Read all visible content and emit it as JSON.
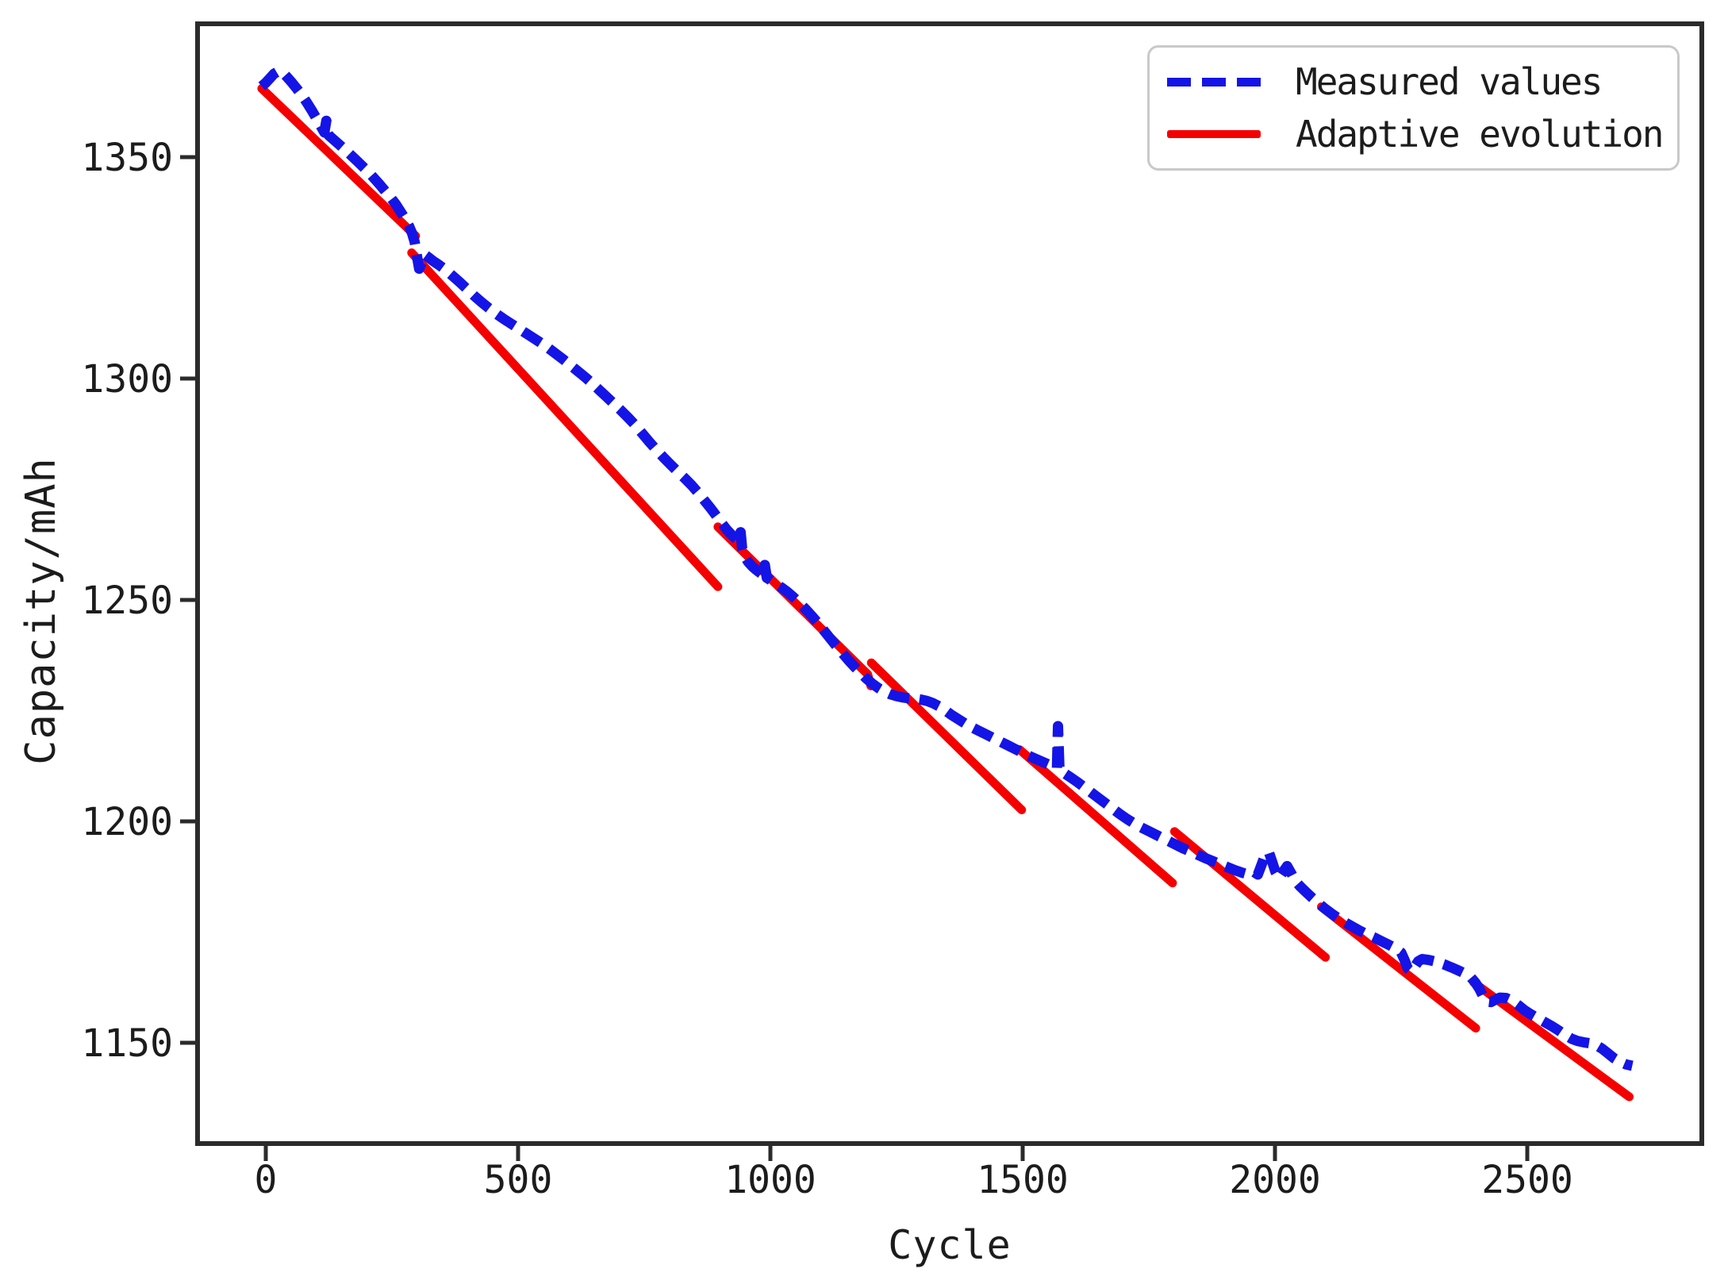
{
  "chart_data": {
    "type": "line",
    "title": "",
    "xlabel": "Cycle",
    "ylabel": "Capacity/mAh",
    "xlim": [
      -135,
      2848
    ],
    "ylim": [
      1127,
      1380
    ],
    "x_ticks": [
      0,
      500,
      1000,
      1500,
      2000,
      2500
    ],
    "y_ticks": [
      1150,
      1200,
      1250,
      1300,
      1350
    ],
    "grid": false,
    "legend_position": "upper right",
    "colors": {
      "measured": "#1414e6",
      "adaptive": "#f40000",
      "axis": "#2b2b2b",
      "text": "#1c1c1c",
      "legend_border": "#c9c9c9"
    },
    "series": [
      {
        "name": "Measured values",
        "style": "dashed",
        "color": "#1414e6",
        "points": [
          [
            -8,
            1366
          ],
          [
            0,
            1366.8
          ],
          [
            8,
            1367.8
          ],
          [
            16,
            1368.8
          ],
          [
            25,
            1369.4
          ],
          [
            34,
            1369.1
          ],
          [
            43,
            1368.0
          ],
          [
            52,
            1366.8
          ],
          [
            62,
            1365.4
          ],
          [
            72,
            1363.9
          ],
          [
            82,
            1362.2
          ],
          [
            92,
            1360.4
          ],
          [
            102,
            1358.4
          ],
          [
            110,
            1356.8
          ],
          [
            116,
            1355.6
          ],
          [
            120,
            1358.2
          ],
          [
            124,
            1355.0
          ],
          [
            132,
            1354.2
          ],
          [
            141,
            1353.3
          ],
          [
            150,
            1352.4
          ],
          [
            160,
            1351.4
          ],
          [
            171,
            1350.2
          ],
          [
            182,
            1349.0
          ],
          [
            193,
            1347.8
          ],
          [
            204,
            1346.6
          ],
          [
            215,
            1345.2
          ],
          [
            226,
            1343.8
          ],
          [
            237,
            1342.3
          ],
          [
            248,
            1340.8
          ],
          [
            258,
            1339.3
          ],
          [
            267,
            1337.7
          ],
          [
            276,
            1336.1
          ],
          [
            284,
            1334.4
          ],
          [
            290,
            1332.8
          ],
          [
            295,
            1330.9
          ],
          [
            299,
            1328.0
          ],
          [
            304,
            1324.8
          ],
          [
            310,
            1326.4
          ],
          [
            315,
            1328.0
          ],
          [
            322,
            1327.4
          ],
          [
            332,
            1326.5
          ],
          [
            344,
            1325.6
          ],
          [
            357,
            1324.5
          ],
          [
            370,
            1323.2
          ],
          [
            384,
            1321.8
          ],
          [
            398,
            1320.3
          ],
          [
            412,
            1318.8
          ],
          [
            426,
            1317.4
          ],
          [
            441,
            1316.0
          ],
          [
            456,
            1314.7
          ],
          [
            471,
            1313.5
          ],
          [
            486,
            1312.4
          ],
          [
            501,
            1311.3
          ],
          [
            516,
            1310.2
          ],
          [
            531,
            1309.1
          ],
          [
            546,
            1308.0
          ],
          [
            561,
            1306.8
          ],
          [
            576,
            1305.5
          ],
          [
            591,
            1304.2
          ],
          [
            606,
            1302.8
          ],
          [
            620,
            1301.5
          ],
          [
            634,
            1300.2
          ],
          [
            648,
            1298.8
          ],
          [
            662,
            1297.3
          ],
          [
            676,
            1295.8
          ],
          [
            690,
            1294.3
          ],
          [
            704,
            1292.8
          ],
          [
            718,
            1291.2
          ],
          [
            732,
            1289.5
          ],
          [
            746,
            1287.6
          ],
          [
            760,
            1285.7
          ],
          [
            774,
            1283.9
          ],
          [
            788,
            1282.2
          ],
          [
            802,
            1280.6
          ],
          [
            816,
            1279.0
          ],
          [
            830,
            1277.5
          ],
          [
            844,
            1275.9
          ],
          [
            857,
            1274.2
          ],
          [
            869,
            1272.5
          ],
          [
            881,
            1270.8
          ],
          [
            893,
            1269.0
          ],
          [
            904,
            1267.3
          ],
          [
            914,
            1265.8
          ],
          [
            924,
            1264.6
          ],
          [
            933,
            1263.7
          ],
          [
            939,
            1263.2
          ],
          [
            941,
            1265.3
          ],
          [
            944,
            1261.6
          ],
          [
            949,
            1259.9
          ],
          [
            956,
            1258.6
          ],
          [
            964,
            1257.6
          ],
          [
            972,
            1256.8
          ],
          [
            980,
            1256.1
          ],
          [
            986,
            1255.6
          ],
          [
            989,
            1257.9
          ],
          [
            993,
            1255.0
          ],
          [
            1000,
            1254.5
          ],
          [
            1010,
            1253.7
          ],
          [
            1022,
            1252.8
          ],
          [
            1034,
            1251.8
          ],
          [
            1046,
            1250.6
          ],
          [
            1058,
            1249.3
          ],
          [
            1070,
            1247.9
          ],
          [
            1082,
            1246.4
          ],
          [
            1094,
            1244.8
          ],
          [
            1106,
            1243.1
          ],
          [
            1118,
            1241.4
          ],
          [
            1130,
            1239.7
          ],
          [
            1142,
            1238.1
          ],
          [
            1154,
            1236.5
          ],
          [
            1166,
            1235.0
          ],
          [
            1178,
            1233.6
          ],
          [
            1190,
            1232.3
          ],
          [
            1202,
            1231.1
          ],
          [
            1214,
            1230.1
          ],
          [
            1226,
            1229.3
          ],
          [
            1238,
            1228.7
          ],
          [
            1250,
            1228.3
          ],
          [
            1262,
            1228.0
          ],
          [
            1274,
            1227.8
          ],
          [
            1286,
            1227.7
          ],
          [
            1298,
            1227.5
          ],
          [
            1310,
            1227.2
          ],
          [
            1322,
            1226.7
          ],
          [
            1334,
            1226.0
          ],
          [
            1346,
            1225.1
          ],
          [
            1358,
            1224.1
          ],
          [
            1372,
            1223.1
          ],
          [
            1386,
            1222.1
          ],
          [
            1400,
            1221.2
          ],
          [
            1414,
            1220.4
          ],
          [
            1428,
            1219.6
          ],
          [
            1442,
            1218.8
          ],
          [
            1456,
            1218.0
          ],
          [
            1470,
            1217.2
          ],
          [
            1484,
            1216.4
          ],
          [
            1498,
            1215.6
          ],
          [
            1512,
            1214.8
          ],
          [
            1526,
            1214.1
          ],
          [
            1540,
            1213.4
          ],
          [
            1552,
            1212.8
          ],
          [
            1562,
            1212.3
          ],
          [
            1568,
            1212.0
          ],
          [
            1570,
            1221.5
          ],
          [
            1573,
            1211.6
          ],
          [
            1582,
            1210.9
          ],
          [
            1594,
            1210.0
          ],
          [
            1608,
            1208.9
          ],
          [
            1622,
            1207.7
          ],
          [
            1636,
            1206.5
          ],
          [
            1650,
            1205.3
          ],
          [
            1664,
            1204.1
          ],
          [
            1678,
            1202.9
          ],
          [
            1692,
            1201.7
          ],
          [
            1706,
            1200.6
          ],
          [
            1720,
            1199.6
          ],
          [
            1734,
            1198.7
          ],
          [
            1748,
            1197.9
          ],
          [
            1762,
            1197.1
          ],
          [
            1776,
            1196.3
          ],
          [
            1790,
            1195.5
          ],
          [
            1804,
            1194.7
          ],
          [
            1818,
            1193.9
          ],
          [
            1832,
            1193.2
          ],
          [
            1846,
            1192.5
          ],
          [
            1860,
            1191.8
          ],
          [
            1875,
            1191.1
          ],
          [
            1890,
            1190.4
          ],
          [
            1905,
            1189.7
          ],
          [
            1920,
            1189.0
          ],
          [
            1935,
            1188.4
          ],
          [
            1948,
            1188.0
          ],
          [
            1958,
            1188.6
          ],
          [
            1966,
            1188.0
          ],
          [
            1974,
            1190.4
          ],
          [
            1981,
            1192.6
          ],
          [
            1988,
            1193.0
          ],
          [
            1994,
            1191.0
          ],
          [
            2001,
            1188.6
          ],
          [
            2008,
            1187.2
          ],
          [
            2016,
            1188.6
          ],
          [
            2024,
            1189.9
          ],
          [
            2032,
            1188.3
          ],
          [
            2040,
            1186.6
          ],
          [
            2050,
            1185.3
          ],
          [
            2062,
            1184.0
          ],
          [
            2074,
            1182.7
          ],
          [
            2086,
            1181.5
          ],
          [
            2098,
            1180.4
          ],
          [
            2112,
            1179.2
          ],
          [
            2126,
            1178.1
          ],
          [
            2140,
            1177.1
          ],
          [
            2154,
            1176.2
          ],
          [
            2168,
            1175.3
          ],
          [
            2182,
            1174.5
          ],
          [
            2196,
            1173.8
          ],
          [
            2210,
            1173.0
          ],
          [
            2224,
            1172.2
          ],
          [
            2238,
            1171.4
          ],
          [
            2250,
            1170.4
          ],
          [
            2257,
            1168.6
          ],
          [
            2263,
            1166.8
          ],
          [
            2270,
            1166.1
          ],
          [
            2277,
            1167.2
          ],
          [
            2284,
            1168.4
          ],
          [
            2292,
            1168.9
          ],
          [
            2305,
            1168.7
          ],
          [
            2320,
            1168.3
          ],
          [
            2335,
            1167.7
          ],
          [
            2350,
            1167.0
          ],
          [
            2364,
            1166.3
          ],
          [
            2377,
            1165.6
          ],
          [
            2388,
            1164.8
          ],
          [
            2397,
            1163.6
          ],
          [
            2405,
            1162.2
          ],
          [
            2413,
            1160.4
          ],
          [
            2420,
            1159.3
          ],
          [
            2428,
            1159.2
          ],
          [
            2436,
            1159.7
          ],
          [
            2446,
            1160.2
          ],
          [
            2458,
            1160.1
          ],
          [
            2470,
            1159.5
          ],
          [
            2482,
            1158.5
          ],
          [
            2494,
            1157.4
          ],
          [
            2506,
            1156.5
          ],
          [
            2520,
            1155.6
          ],
          [
            2534,
            1154.7
          ],
          [
            2548,
            1153.8
          ],
          [
            2562,
            1152.8
          ],
          [
            2576,
            1151.7
          ],
          [
            2588,
            1150.9
          ],
          [
            2600,
            1150.4
          ],
          [
            2612,
            1150.1
          ],
          [
            2624,
            1149.9
          ],
          [
            2636,
            1149.5
          ],
          [
            2648,
            1148.7
          ],
          [
            2660,
            1147.6
          ],
          [
            2672,
            1146.5
          ],
          [
            2684,
            1145.7
          ],
          [
            2696,
            1145.1
          ],
          [
            2708,
            1144.8
          ]
        ]
      },
      {
        "name": "Adaptive evolution",
        "style": "solid",
        "color": "#f40000",
        "segments": [
          [
            [
              -8,
              1365.5
            ],
            [
              297,
              1332.2
            ]
          ],
          [
            [
              289,
              1328.4
            ],
            [
              896,
              1253.0
            ]
          ],
          [
            [
              896,
              1266.5
            ],
            [
              1193,
              1233.2
            ],
            [
              1199,
              1230.6
            ]
          ],
          [
            [
              1200,
              1235.8
            ],
            [
              1498,
              1202.6
            ]
          ],
          [
            [
              1494,
              1216.2
            ],
            [
              1797,
              1186.1
            ]
          ],
          [
            [
              1801,
              1197.7
            ],
            [
              2100,
              1169.3
            ]
          ],
          [
            [
              2092,
              1180.7
            ],
            [
              2398,
              1153.3
            ]
          ],
          [
            [
              2394,
              1163.6
            ],
            [
              2702,
              1137.8
            ]
          ]
        ]
      }
    ]
  },
  "legend": {
    "items": [
      {
        "label": "Measured values",
        "style": "dashed",
        "color": "#1414e6"
      },
      {
        "label": "Adaptive evolution",
        "style": "solid",
        "color": "#f40000"
      }
    ]
  }
}
